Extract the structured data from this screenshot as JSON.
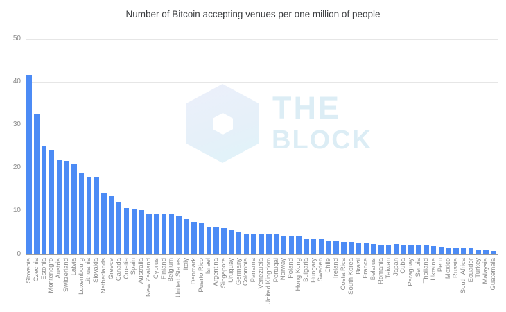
{
  "title": "Number of Bitcoin accepting venues per one million of people",
  "watermark": {
    "line1": "THE",
    "line2": "BLOCK"
  },
  "colors": {
    "bar": "#4c8bf5",
    "grid": "#e6e6e6",
    "axis_line": "#9e9e9e",
    "title_text": "#3d3f42",
    "tick_text": "#8a8a8a",
    "watermark_text": "#dcedf5",
    "watermark_hex_light": "#eceffa",
    "watermark_hex_cyan": "#dff3f9"
  },
  "chart_data": {
    "type": "bar",
    "title": "Number of Bitcoin accepting venues per one million of people",
    "xlabel": "",
    "ylabel": "",
    "ylim": [
      0,
      50
    ],
    "yticks": [
      0,
      10,
      20,
      30,
      40,
      50
    ],
    "grid": true,
    "legend": "none",
    "bar_color": "#4c8bf5",
    "categories": [
      "Slovenia",
      "Czechia",
      "Estonia",
      "Montenegro",
      "Austria",
      "Switzerland",
      "Latvia",
      "Luxembourg",
      "Lithuania",
      "Slovakia",
      "Netherlands",
      "Greece",
      "Canada",
      "Croatia",
      "Spain",
      "Australia",
      "New Zealand",
      "Cyprus",
      "Finland",
      "Belgium",
      "United States",
      "Italy",
      "Denmark",
      "Puerto Rico",
      "Israel",
      "Argentina",
      "Singapore",
      "Uruguay",
      "Germany",
      "Colombia",
      "Panama",
      "Venezuela",
      "United Kingdom",
      "Portugal",
      "Norway",
      "Poland",
      "Hong Kong",
      "Bulgaria",
      "Hungary",
      "Sweden",
      "Chile",
      "Ireland",
      "Costa Rica",
      "South Korea",
      "Brazil",
      "France",
      "Belarus",
      "Romania",
      "Taiwan",
      "Japan",
      "Cuba",
      "Paraguay",
      "Serbia",
      "Thailand",
      "Ukraine",
      "Peru",
      "Mexico",
      "Russia",
      "South Africa",
      "Ecuador",
      "Turkey",
      "Malaysia",
      "Guatemala"
    ],
    "values": [
      41.6,
      32.6,
      25.2,
      24.2,
      21.9,
      21.6,
      21.0,
      18.8,
      17.9,
      17.9,
      14.2,
      13.5,
      12.0,
      10.7,
      10.4,
      10.2,
      9.5,
      9.4,
      9.4,
      9.2,
      8.8,
      8.2,
      7.5,
      7.2,
      6.4,
      6.4,
      6.0,
      5.5,
      5.0,
      4.8,
      4.8,
      4.7,
      4.8,
      4.7,
      4.3,
      4.2,
      4.1,
      3.7,
      3.6,
      3.5,
      3.2,
      3.2,
      2.9,
      2.8,
      2.7,
      2.5,
      2.3,
      2.2,
      2.2,
      2.3,
      2.2,
      2.1,
      2.0,
      2.0,
      1.9,
      1.7,
      1.6,
      1.4,
      1.4,
      1.3,
      1.0,
      1.0,
      0.8
    ]
  }
}
